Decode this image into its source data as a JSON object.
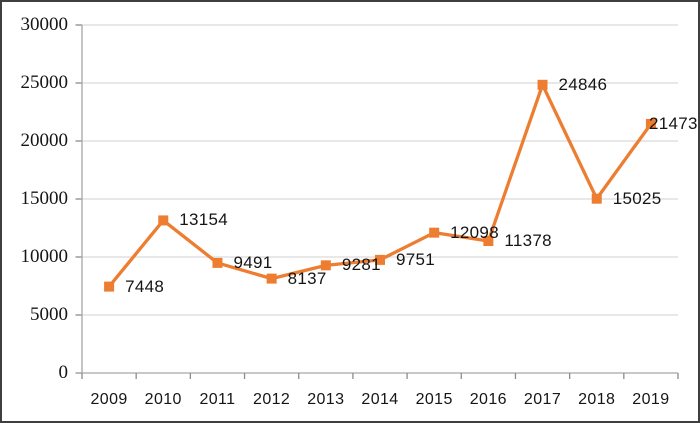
{
  "chart_data": {
    "type": "line",
    "title": "",
    "xlabel": "",
    "ylabel": "",
    "legend": "none",
    "grid": "horizontal",
    "marker": "square",
    "categories": [
      "2009",
      "2010",
      "2011",
      "2012",
      "2013",
      "2014",
      "2015",
      "2016",
      "2017",
      "2018",
      "2019"
    ],
    "series": [
      {
        "name": "",
        "values": [
          7448,
          13154,
          9491,
          8137,
          9281,
          9751,
          12098,
          11378,
          24846,
          15025,
          21473
        ]
      }
    ],
    "data_labels": [
      "7448",
      "13154",
      "9491",
      "8137",
      "9281",
      "9751",
      "12098",
      "11378",
      "24846",
      "15025",
      "21473"
    ],
    "ylim": [
      0,
      30000
    ],
    "y_ticks": [
      0,
      5000,
      10000,
      15000,
      20000,
      25000,
      30000
    ],
    "y_tick_labels": [
      "0",
      "5000",
      "10000",
      "15000",
      "20000",
      "25000",
      "30000"
    ],
    "colors": {
      "series": "#ED7D31",
      "gridline": "#D9D9D9",
      "axis": "#A6A6A6",
      "tick": "#8C8C8C",
      "text": "#151515",
      "frame_border": "#3F3F3F",
      "background": "#FFFFFF"
    }
  }
}
